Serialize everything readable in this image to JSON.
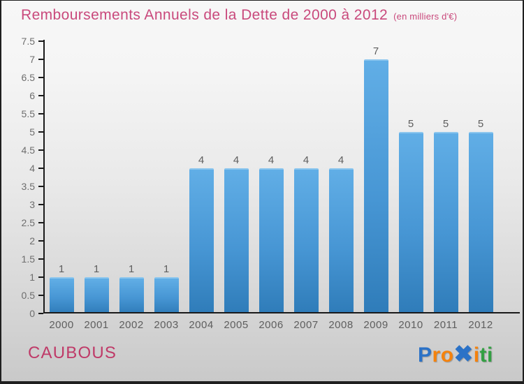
{
  "title": {
    "text": "Remboursements Annuels de la Dette de 2000 à 2012",
    "subtitle": "(en milliers d'€)"
  },
  "chart_data": {
    "type": "bar",
    "title": "Remboursements Annuels de la Dette de 2000 à 2012",
    "subtitle": "(en milliers d'€)",
    "categories": [
      "2000",
      "2001",
      "2002",
      "2003",
      "2004",
      "2005",
      "2006",
      "2007",
      "2008",
      "2009",
      "2010",
      "2011",
      "2012"
    ],
    "values": [
      1,
      1,
      1,
      1,
      4,
      4,
      4,
      4,
      4,
      7,
      5,
      5,
      5
    ],
    "xlabel": "",
    "ylabel": "",
    "ylim": [
      0,
      7.5
    ],
    "ytick_step": 0.5,
    "yticks": [
      "0",
      "0.5",
      "1",
      "1.5",
      "2",
      "2.5",
      "3",
      "3.5",
      "4",
      "4.5",
      "5",
      "5.5",
      "6",
      "6.5",
      "7",
      "7.5"
    ],
    "grid": false,
    "legend": null,
    "bar_labels_shown": true
  },
  "footer": {
    "entity": "CAUBOUS",
    "logo": {
      "name": "Proxiti",
      "letters": [
        {
          "char": "P",
          "color": "#2b72c7"
        },
        {
          "char": "r",
          "color": "#f5820c"
        },
        {
          "char": "o",
          "color": "#f5820c"
        },
        {
          "char": "✖",
          "color": "#2b72c7",
          "big": true
        },
        {
          "char": "i",
          "color": "#f5820c"
        },
        {
          "char": "t",
          "color": "#33a043"
        },
        {
          "char": "i",
          "color": "#33a043"
        }
      ]
    }
  },
  "colors": {
    "title": "#c9497c",
    "entity": "#bf3a68",
    "axis": "#1a1a1a",
    "tick_labels": "#6e6e6e",
    "value_labels": "#5e5e5e",
    "bar_top": "#61aee6",
    "bar_mid": "#4796d4",
    "bar_bottom": "#2f7cb9",
    "bar_edge": "#8cc6ee"
  }
}
